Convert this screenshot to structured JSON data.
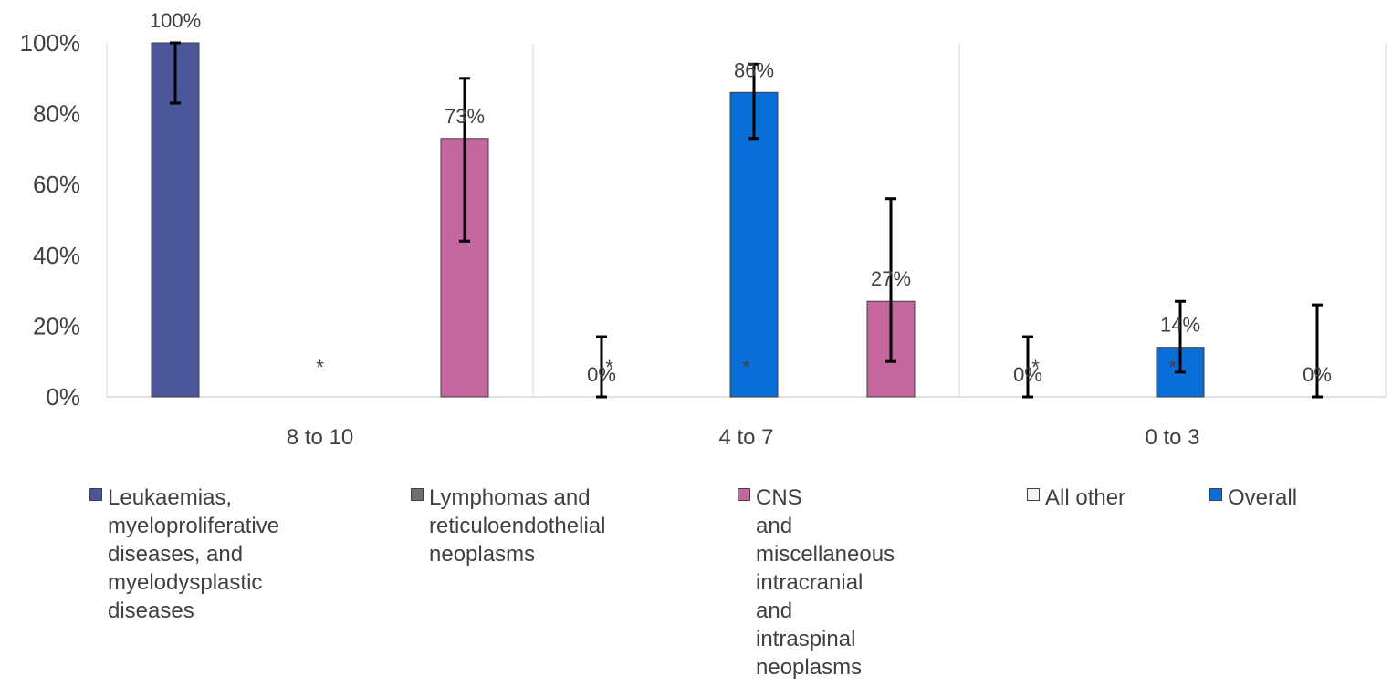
{
  "chart_data": {
    "type": "bar",
    "categories": [
      "8 to 10",
      "4 to 7",
      "0 to 3"
    ],
    "series": [
      {
        "name": "Leukaemias, myeloproliferative diseases, and myelodysplastic diseases",
        "color": "#4A5699",
        "values": [
          100,
          0,
          0
        ],
        "labels": [
          "100%",
          "0%",
          "0%"
        ],
        "error_low": [
          83,
          0,
          0
        ],
        "error_high": [
          100,
          17,
          17
        ]
      },
      {
        "name": "Lymphomas and reticuloendothelial neoplasms",
        "color": "#707070",
        "values": [
          null,
          null,
          null
        ],
        "labels": [
          "*",
          "*",
          "*"
        ]
      },
      {
        "name": "CNS and miscellaneous intracranial and intraspinal neoplasms",
        "color": "#C4679F",
        "values": [
          73,
          27,
          0
        ],
        "labels": [
          "73%",
          "27%",
          "0%"
        ],
        "error_low": [
          44,
          10,
          0
        ],
        "error_high": [
          90,
          56,
          26
        ]
      },
      {
        "name": "All other",
        "color": "#F2F2F2",
        "values": [
          null,
          null,
          null
        ],
        "labels": [
          "*",
          "*",
          "*"
        ]
      },
      {
        "name": "Overall",
        "color": "#0A6ED9",
        "values": [
          86,
          14,
          0
        ],
        "labels": [
          "86%",
          "14%",
          "0%"
        ],
        "error_low": [
          73,
          7,
          0
        ],
        "error_high": [
          94,
          27,
          0
        ]
      }
    ],
    "yticks": [
      "0%",
      "20%",
      "40%",
      "60%",
      "80%",
      "100%"
    ],
    "ylim": [
      0,
      100
    ],
    "xlabel": "",
    "ylabel": "",
    "grid": "vertical category separators",
    "legend_position": "bottom"
  },
  "legend": [
    {
      "label": "Leukaemias, myeloproliferative diseases, and myelodysplastic diseases",
      "color": "#4A5699"
    },
    {
      "label": "Lymphomas and reticuloendothelial neoplasms",
      "color": "#707070"
    },
    {
      "label": "CNS and miscellaneous intracranial and intraspinal neoplasms",
      "color": "#C4679F"
    },
    {
      "label": "All other",
      "color": "#F2F2F2"
    },
    {
      "label": "Overall",
      "color": "#0A6ED9"
    }
  ]
}
